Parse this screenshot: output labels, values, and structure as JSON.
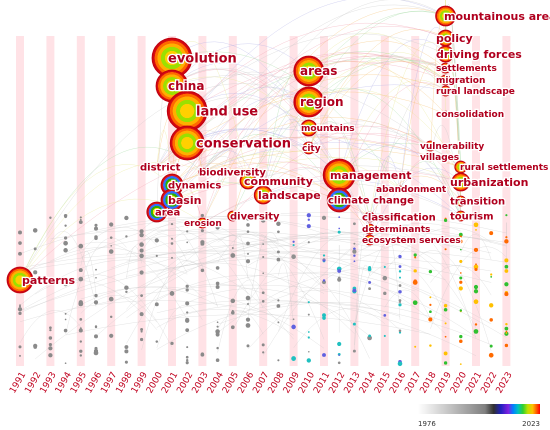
{
  "years": [
    "1991",
    "1992",
    "1993",
    "1994",
    "1995",
    "1996",
    "1997",
    "1998",
    "1999",
    "2000",
    "2001",
    "2002",
    "2003",
    "2004",
    "2005",
    "2006",
    "2007",
    "2008",
    "2009",
    "2010",
    "2011",
    "2012",
    "2013",
    "2014",
    "2015",
    "2016",
    "2017",
    "2018",
    "2019",
    "2020",
    "2021",
    "2022",
    "2023"
  ],
  "legend": {
    "start": "1976",
    "end": "2023"
  },
  "keywords": [
    {
      "label": "mountainous areas",
      "year": 2019,
      "size": "large"
    },
    {
      "label": "policy",
      "year": 2019,
      "size": "large"
    },
    {
      "label": "driving forces",
      "year": 2019,
      "size": "large"
    },
    {
      "label": "settlements",
      "year": 2019,
      "size": "small"
    },
    {
      "label": "migration",
      "year": 2019,
      "size": "small"
    },
    {
      "label": "rural landscape",
      "year": 2019,
      "size": "small"
    },
    {
      "label": "consolidation",
      "year": 2019,
      "size": "small"
    },
    {
      "label": "evolution",
      "year": 2001,
      "size": "large"
    },
    {
      "label": "china",
      "year": 2001,
      "size": "large"
    },
    {
      "label": "land use",
      "year": 2002,
      "size": "large"
    },
    {
      "label": "conservation",
      "year": 2002,
      "size": "large"
    },
    {
      "label": "areas",
      "year": 2010,
      "size": "large"
    },
    {
      "label": "region",
      "year": 2010,
      "size": "large"
    },
    {
      "label": "mountains",
      "year": 2010,
      "size": "small"
    },
    {
      "label": "city",
      "year": 2010,
      "size": "small"
    },
    {
      "label": "district",
      "year": 2000,
      "size": "small"
    },
    {
      "label": "biodiversity",
      "year": 2003,
      "size": "small"
    },
    {
      "label": "dynamics",
      "year": 2001,
      "size": "medium"
    },
    {
      "label": "basin",
      "year": 2001,
      "size": "medium"
    },
    {
      "label": "area",
      "year": 2000,
      "size": "medium"
    },
    {
      "label": "erosion",
      "year": 2003,
      "size": "small"
    },
    {
      "label": "community",
      "year": 2006,
      "size": "medium"
    },
    {
      "label": "landscape",
      "year": 2007,
      "size": "medium"
    },
    {
      "label": "diversity",
      "year": 2005,
      "size": "small"
    },
    {
      "label": "management",
      "year": 2012,
      "size": "medium"
    },
    {
      "label": "climate change",
      "year": 2012,
      "size": "medium"
    },
    {
      "label": "abandonment",
      "year": 2016,
      "size": "small"
    },
    {
      "label": "classification",
      "year": 2014,
      "size": "small"
    },
    {
      "label": "determinants",
      "year": 2014,
      "size": "small"
    },
    {
      "label": "ecosystem services",
      "year": 2014,
      "size": "small"
    },
    {
      "label": "vulnerability",
      "year": 2018,
      "size": "small"
    },
    {
      "label": "villages",
      "year": 2018,
      "size": "small"
    },
    {
      "label": "rural settlements",
      "year": 2020,
      "size": "small"
    },
    {
      "label": "urbanization",
      "year": 2020,
      "size": "medium"
    },
    {
      "label": "transition",
      "year": 2020,
      "size": "small"
    },
    {
      "label": "tourism",
      "year": 2020,
      "size": "small"
    },
    {
      "label": "patterns",
      "year": 1991,
      "size": "medium"
    }
  ]
}
